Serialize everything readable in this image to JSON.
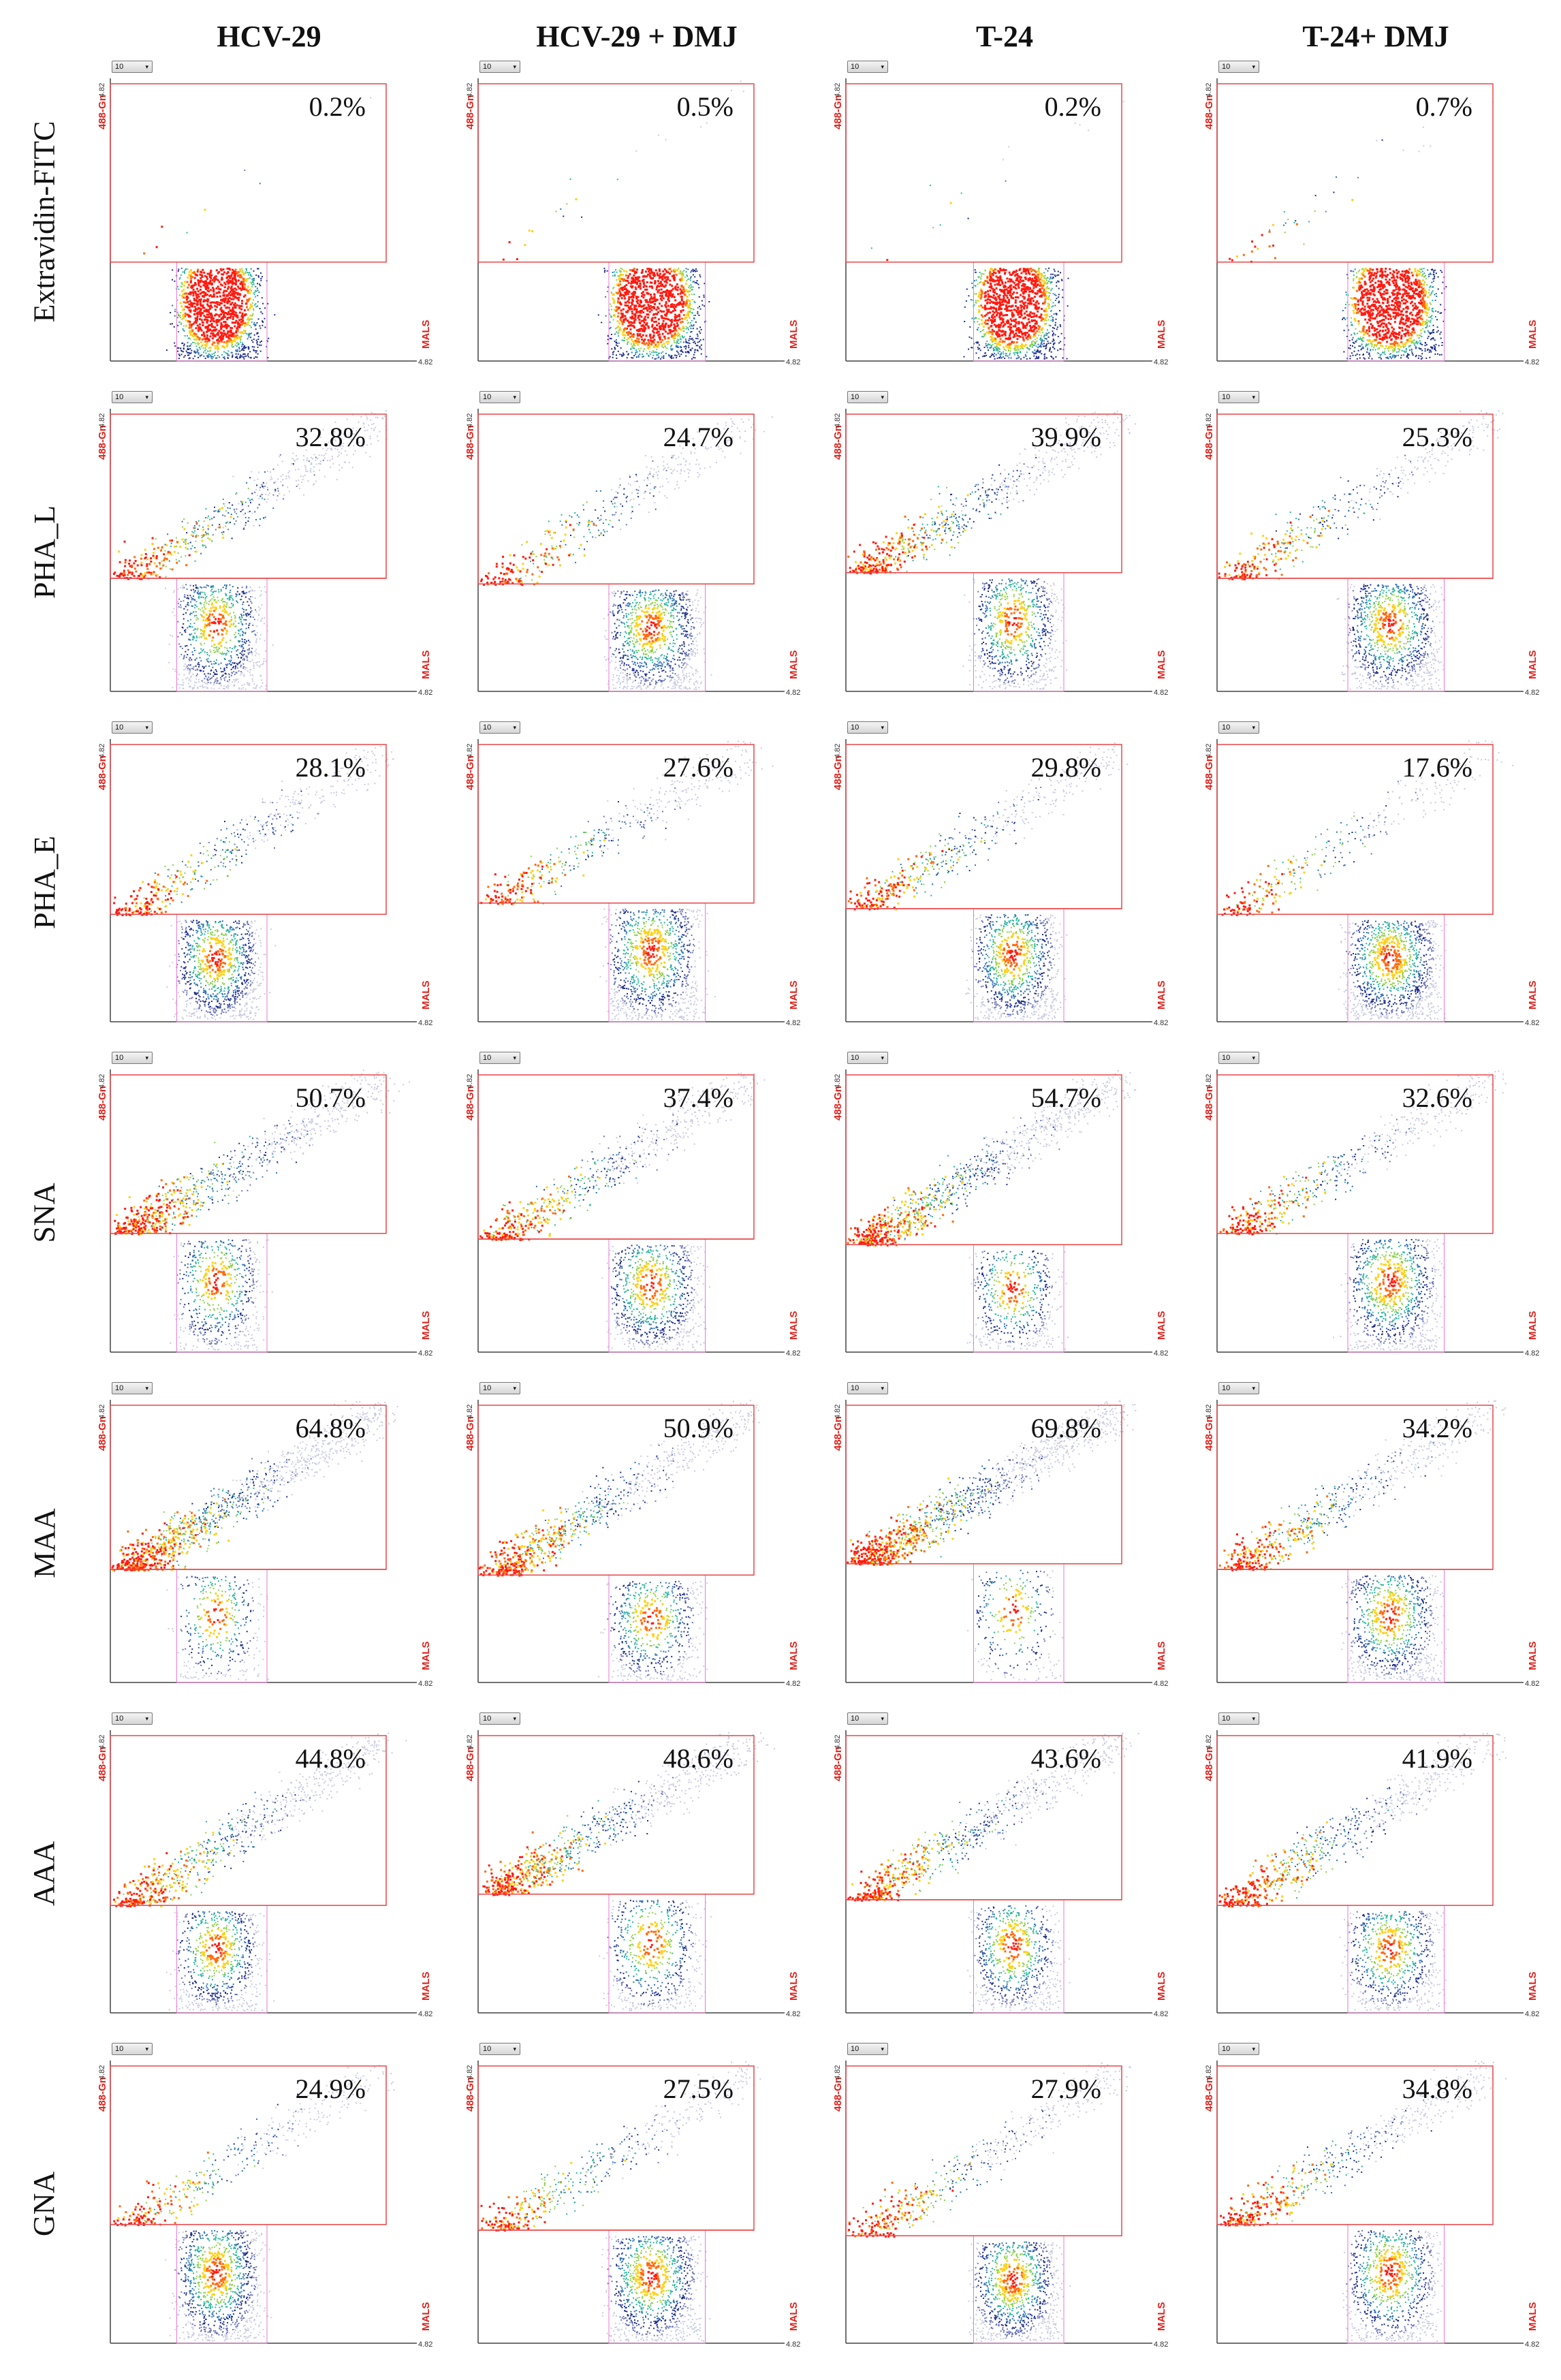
{
  "figure": {
    "columns": [
      "HCV-29",
      "HCV-29 + DMJ",
      "T-24",
      "T-24+ DMJ"
    ],
    "rows": [
      "Extravidin-FITC",
      "PHA_L",
      "PHA_E",
      "SNA",
      "MAA",
      "AAA",
      "GNA"
    ],
    "axis": {
      "y_label": "488-Gn",
      "x_label": "MALS",
      "tick_max": "4.82",
      "dropdown_value": "10"
    }
  },
  "chart_data": [
    {
      "type": "scatter",
      "row": "Extravidin-FITC",
      "column": "HCV-29",
      "gated_percent": "0.2%"
    },
    {
      "type": "scatter",
      "row": "Extravidin-FITC",
      "column": "HCV-29 + DMJ",
      "gated_percent": "0.5%"
    },
    {
      "type": "scatter",
      "row": "Extravidin-FITC",
      "column": "T-24",
      "gated_percent": "0.2%"
    },
    {
      "type": "scatter",
      "row": "Extravidin-FITC",
      "column": "T-24+ DMJ",
      "gated_percent": "0.7%"
    },
    {
      "type": "scatter",
      "row": "PHA_L",
      "column": "HCV-29",
      "gated_percent": "32.8%"
    },
    {
      "type": "scatter",
      "row": "PHA_L",
      "column": "HCV-29 + DMJ",
      "gated_percent": "24.7%"
    },
    {
      "type": "scatter",
      "row": "PHA_L",
      "column": "T-24",
      "gated_percent": "39.9%"
    },
    {
      "type": "scatter",
      "row": "PHA_L",
      "column": "T-24+ DMJ",
      "gated_percent": "25.3%"
    },
    {
      "type": "scatter",
      "row": "PHA_E",
      "column": "HCV-29",
      "gated_percent": "28.1%"
    },
    {
      "type": "scatter",
      "row": "PHA_E",
      "column": "HCV-29 + DMJ",
      "gated_percent": "27.6%"
    },
    {
      "type": "scatter",
      "row": "PHA_E",
      "column": "T-24",
      "gated_percent": "29.8%"
    },
    {
      "type": "scatter",
      "row": "PHA_E",
      "column": "T-24+ DMJ",
      "gated_percent": "17.6%"
    },
    {
      "type": "scatter",
      "row": "SNA",
      "column": "HCV-29",
      "gated_percent": "50.7%"
    },
    {
      "type": "scatter",
      "row": "SNA",
      "column": "HCV-29 + DMJ",
      "gated_percent": "37.4%"
    },
    {
      "type": "scatter",
      "row": "SNA",
      "column": "T-24",
      "gated_percent": "54.7%"
    },
    {
      "type": "scatter",
      "row": "SNA",
      "column": "T-24+ DMJ",
      "gated_percent": "32.6%"
    },
    {
      "type": "scatter",
      "row": "MAA",
      "column": "HCV-29",
      "gated_percent": "64.8%"
    },
    {
      "type": "scatter",
      "row": "MAA",
      "column": "HCV-29 + DMJ",
      "gated_percent": "50.9%"
    },
    {
      "type": "scatter",
      "row": "MAA",
      "column": "T-24",
      "gated_percent": "69.8%"
    },
    {
      "type": "scatter",
      "row": "MAA",
      "column": "T-24+ DMJ",
      "gated_percent": "34.2%"
    },
    {
      "type": "scatter",
      "row": "AAA",
      "column": "HCV-29",
      "gated_percent": "44.8%"
    },
    {
      "type": "scatter",
      "row": "AAA",
      "column": "HCV-29 + DMJ",
      "gated_percent": "48.6%"
    },
    {
      "type": "scatter",
      "row": "AAA",
      "column": "T-24",
      "gated_percent": "43.6%"
    },
    {
      "type": "scatter",
      "row": "AAA",
      "column": "T-24+ DMJ",
      "gated_percent": "41.9%"
    },
    {
      "type": "scatter",
      "row": "GNA",
      "column": "HCV-29",
      "gated_percent": "24.9%"
    },
    {
      "type": "scatter",
      "row": "GNA",
      "column": "HCV-29 + DMJ",
      "gated_percent": "27.5%"
    },
    {
      "type": "scatter",
      "row": "GNA",
      "column": "T-24",
      "gated_percent": "27.9%"
    },
    {
      "type": "scatter",
      "row": "GNA",
      "column": "T-24+ DMJ",
      "gated_percent": "34.8%"
    }
  ],
  "colors": {
    "gate": "#e8474a",
    "axis_label": "#e0201a",
    "density_low": "#1a2a8a",
    "density_mid": "#2ab3a0",
    "density_high": "#ff1a10"
  }
}
